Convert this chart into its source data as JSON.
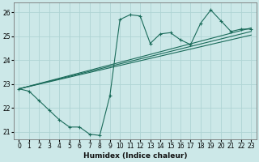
{
  "title": "",
  "xlabel": "Humidex (Indice chaleur)",
  "background_color": "#cce8e8",
  "line_color": "#1a6b5a",
  "xlim": [
    -0.5,
    23.5
  ],
  "ylim": [
    20.7,
    26.4
  ],
  "yticks": [
    21,
    22,
    23,
    24,
    25,
    26
  ],
  "xticks": [
    0,
    1,
    2,
    3,
    4,
    5,
    6,
    7,
    8,
    9,
    10,
    11,
    12,
    13,
    14,
    15,
    16,
    17,
    18,
    19,
    20,
    21,
    22,
    23
  ],
  "grid_color": "#afd4d4",
  "series1_x": [
    0,
    1,
    2,
    3,
    4,
    5,
    6,
    7,
    8,
    9,
    10,
    11,
    12,
    13,
    14,
    15,
    16,
    17,
    18,
    19,
    20,
    21,
    22,
    23
  ],
  "series1_y": [
    22.8,
    22.7,
    22.3,
    21.9,
    21.5,
    21.2,
    21.2,
    20.9,
    20.85,
    22.5,
    25.7,
    25.9,
    25.85,
    24.7,
    25.1,
    25.15,
    24.85,
    24.65,
    25.55,
    26.1,
    25.65,
    25.2,
    25.3,
    25.3
  ],
  "line2_x": [
    0,
    23
  ],
  "line2_y": [
    22.8,
    25.05
  ],
  "line3_x": [
    0,
    23
  ],
  "line3_y": [
    22.8,
    25.2
  ],
  "line4_x": [
    0,
    23
  ],
  "line4_y": [
    22.8,
    25.35
  ],
  "tick_fontsize": 5.5,
  "xlabel_fontsize": 6.5
}
